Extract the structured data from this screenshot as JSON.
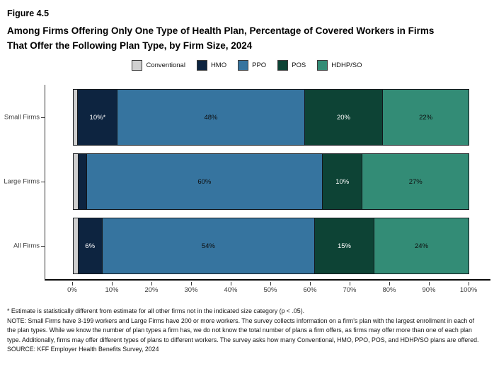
{
  "figure_label": "Figure 4.5",
  "title": {
    "lines": [
      "Among Firms Offering Only One Type of Health Plan, Percentage of Covered Workers in Firms",
      "That Offer the Following Plan Type, by Firm Size, 2024"
    ]
  },
  "chart_data": {
    "type": "bar",
    "orientation": "horizontal",
    "stacked": true,
    "categories": [
      "Small Firms",
      "Large Firms",
      "All Firms"
    ],
    "series": [
      {
        "name": "Conventional",
        "color": "#cfcfcf",
        "label_color": "#1a1a1a",
        "values": [
          1,
          1,
          1
        ],
        "value_labels": [
          "",
          "",
          ""
        ]
      },
      {
        "name": "HMO",
        "color": "#0d2440",
        "label_color": "#ffffff",
        "values": [
          10,
          2,
          6
        ],
        "value_labels": [
          "10%*",
          "",
          "6%"
        ]
      },
      {
        "name": "PPO",
        "color": "#36749f",
        "label_color": "#0d0d0d",
        "values": [
          48,
          60,
          54
        ],
        "value_labels": [
          "48%",
          "60%",
          "54%"
        ]
      },
      {
        "name": "POS",
        "color": "#0d4335",
        "label_color": "#ffffff",
        "values": [
          20,
          10,
          15
        ],
        "value_labels": [
          "20%",
          "10%",
          "15%"
        ]
      },
      {
        "name": "HDHP/SO",
        "color": "#338c76",
        "label_color": "#0d0d0d",
        "values": [
          22,
          27,
          24
        ],
        "value_labels": [
          "22%",
          "27%",
          "24%"
        ]
      }
    ],
    "x_ticks": [
      "0%",
      "10%",
      "20%",
      "30%",
      "40%",
      "50%",
      "60%",
      "70%",
      "80%",
      "90%",
      "100%"
    ],
    "xlim": [
      0,
      100
    ],
    "legend_position": "top",
    "grid": false
  },
  "footnotes": {
    "asterisk": "* Estimate is statistically different from estimate for all other firms not in the indicated size category (p < .05).",
    "note": "NOTE: Small Firms have 3-199 workers and Large Firms have 200 or more workers. The survey collects information on a firm's plan with the largest enrollment in each of the plan types. While we know the number of plan types a firm has, we do not know the total number of plans a firm offers, as firms may offer more than one of each plan type. Additionally, firms may offer different types of plans to different workers. The survey asks how many Conventional, HMO, PPO, POS, and HDHP/SO plans are offered.",
    "source": "SOURCE: KFF Employer Health Benefits Survey, 2024"
  }
}
